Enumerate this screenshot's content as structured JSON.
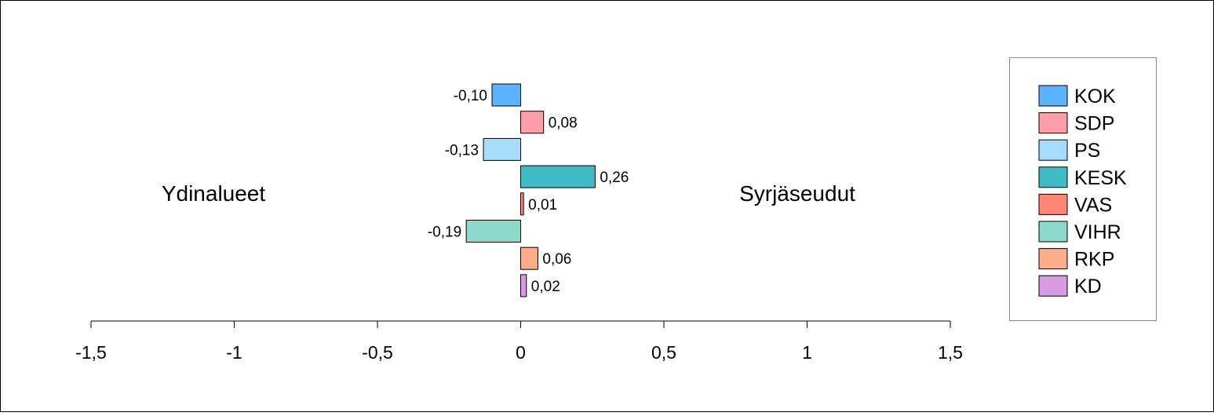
{
  "chart_data": {
    "type": "bar",
    "orientation": "horizontal",
    "categories": [
      "KOK",
      "SDP",
      "PS",
      "KESK",
      "VAS",
      "VIHR",
      "RKP",
      "KD"
    ],
    "values": [
      -0.1,
      0.08,
      -0.13,
      0.26,
      0.01,
      -0.19,
      0.06,
      0.02
    ],
    "value_labels": [
      "-0,10",
      "0,08",
      "-0,13",
      "0,26",
      "0,01",
      "-0,19",
      "0,06",
      "0,02"
    ],
    "colors": [
      "#5cb3ff",
      "#ff9ea6",
      "#a6dcff",
      "#3ebbc4",
      "#ff8577",
      "#8cd9cc",
      "#ffac8a",
      "#d99ae3"
    ],
    "xlim": [
      -1.5,
      1.5
    ],
    "xticks": [
      -1.5,
      -1,
      -0.5,
      0,
      0.5,
      1,
      1.5
    ],
    "xtick_labels": [
      "-1,5",
      "-1",
      "-0,5",
      "0",
      "0,5",
      "1",
      "1,5"
    ],
    "left_annotation": "Ydinalueet",
    "right_annotation": "Syrjäseudut",
    "legend_position": "right",
    "grid": false
  }
}
